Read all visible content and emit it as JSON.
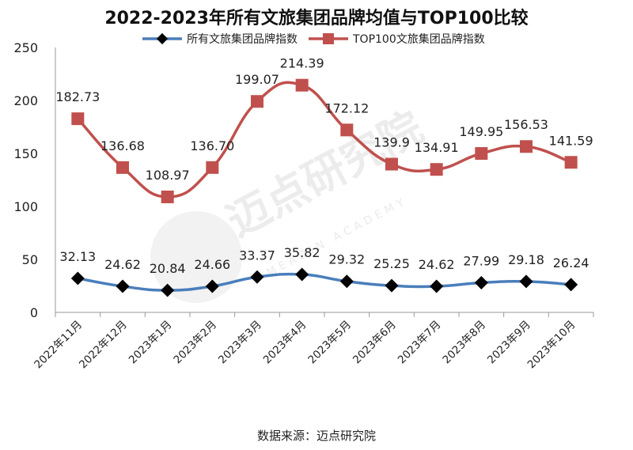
{
  "chart_data": {
    "type": "line",
    "title": "2022-2023年所有文旅集团品牌均值与TOP100比较",
    "categories": [
      "2022年11月",
      "2022年12月",
      "2023年1月",
      "2023年2月",
      "2023年3月",
      "2023年4月",
      "2023年5月",
      "2023年6月",
      "2023年7月",
      "2023年8月",
      "2023年9月",
      "2023年10月"
    ],
    "series": [
      {
        "name": "所有文旅集团品牌指数",
        "color": "#4a7ebb",
        "marker": "diamond",
        "values": [
          32.13,
          24.62,
          20.84,
          24.66,
          33.37,
          35.82,
          29.32,
          25.25,
          24.62,
          27.99,
          29.18,
          26.24
        ],
        "labels": [
          "32.13",
          "24.62",
          "20.84",
          "24.66",
          "33.37",
          "35.82",
          "29.32",
          "25.25",
          "24.62",
          "27.99",
          "29.18",
          "26.24"
        ]
      },
      {
        "name": "TOP100文旅集团品牌指数",
        "color": "#c0504d",
        "marker": "square",
        "values": [
          182.73,
          136.68,
          108.97,
          136.7,
          199.07,
          214.39,
          172.12,
          139.9,
          134.91,
          149.95,
          156.53,
          141.59
        ],
        "labels": [
          "182.73",
          "136.68",
          "108.97",
          "136.70",
          "199.07",
          "214.39",
          "172.12",
          "139.9",
          "134.91",
          "149.95",
          "156.53",
          "141.59"
        ]
      }
    ],
    "ylim": [
      0,
      250
    ],
    "yticks": [
      0,
      50,
      100,
      150,
      200,
      250
    ],
    "legend_position": "top",
    "grid": false,
    "xlabel": "",
    "ylabel": ""
  },
  "source_text": "数据来源：迈点研究院",
  "watermark": {
    "cn": "迈点研究院",
    "en": "MEADIN ACADEMY"
  }
}
